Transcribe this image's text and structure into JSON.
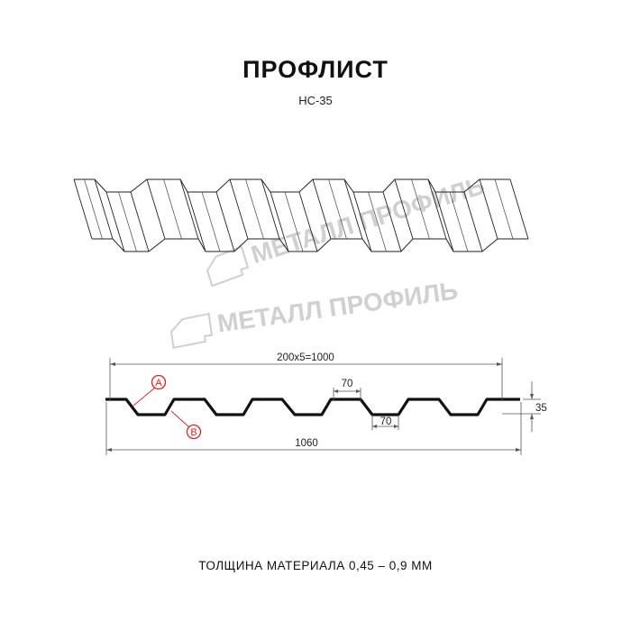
{
  "title": "ПРОФЛИСТ",
  "subtitle": "НС-35",
  "watermark": "МЕТАЛЛ ПРОФИЛЬ",
  "dimensions": {
    "pitch": "200x5=1000",
    "top_flat": "70",
    "bottom_flat": "70",
    "height": "35",
    "total_width": "1060"
  },
  "markers": {
    "a": "A",
    "b": "B"
  },
  "footer": "ТОЛЩИНА МАТЕРИАЛА 0,45 – 0,9 ММ",
  "colors": {
    "profile": "#111111",
    "marker": "#e0201c",
    "watermark": "#c8c8c8"
  }
}
